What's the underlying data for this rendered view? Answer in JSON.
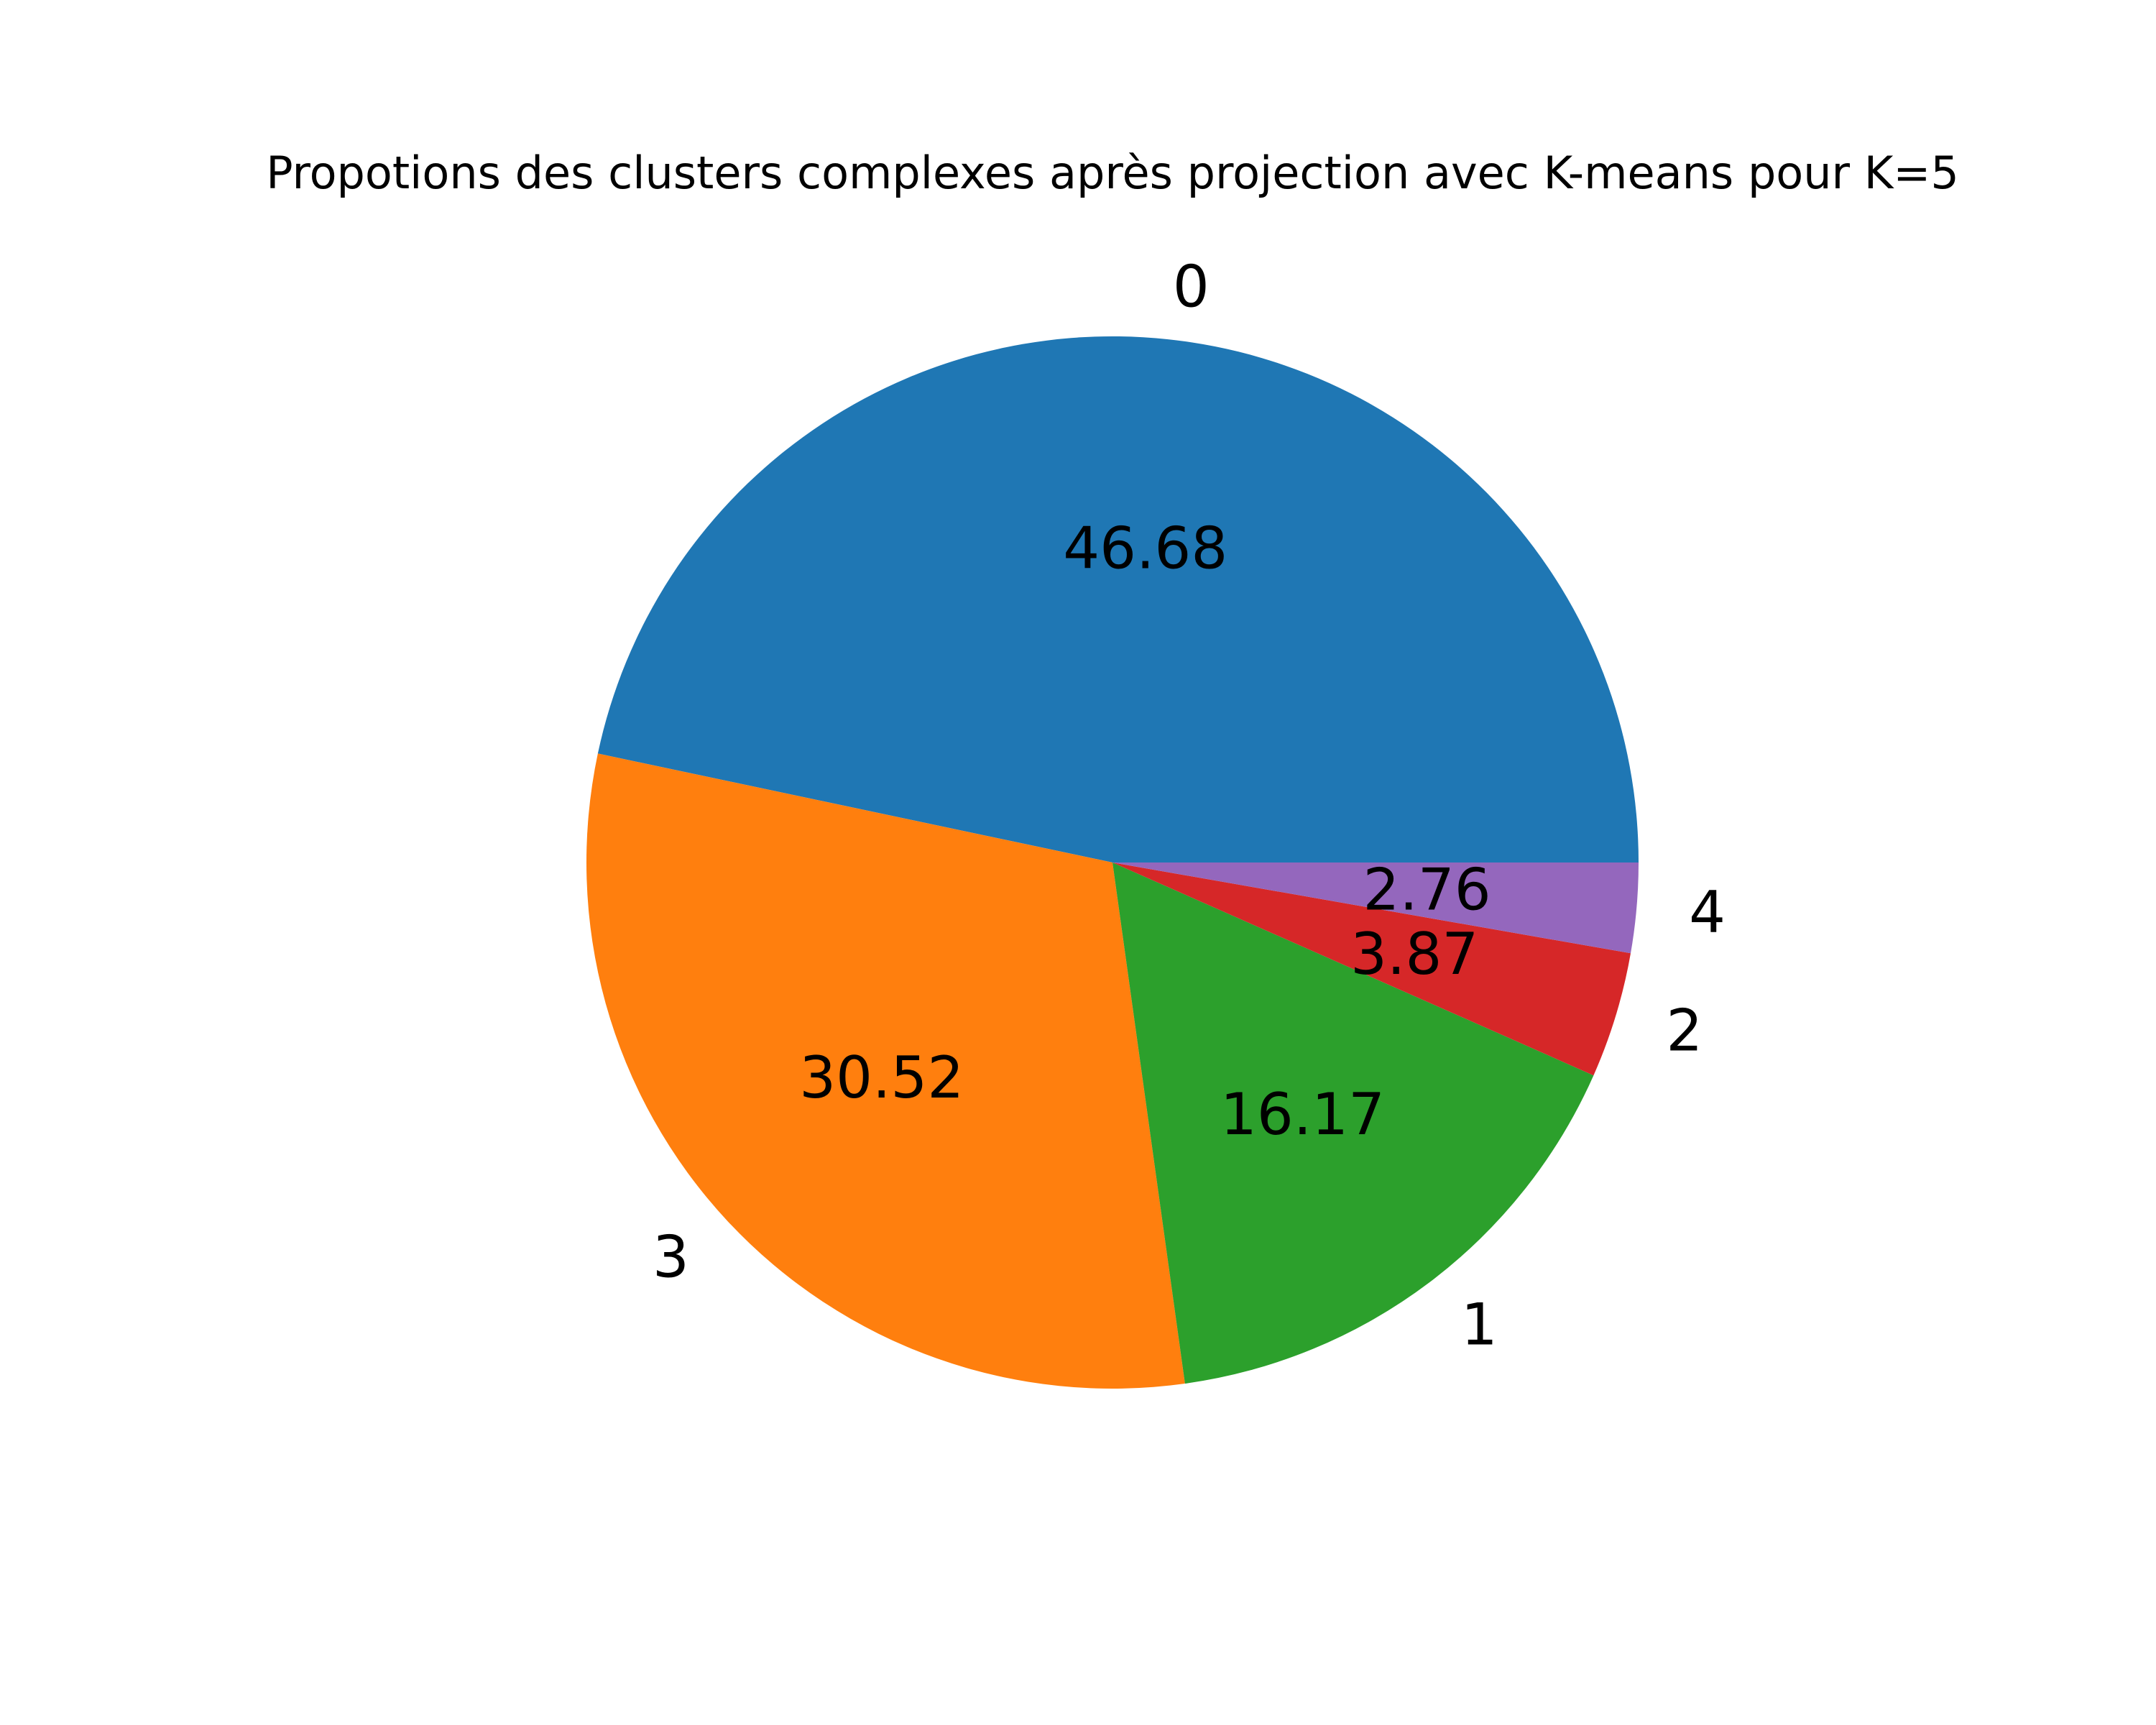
{
  "chart_data": {
    "type": "pie",
    "title": "Propotions des clusters complexes après projection avec K-means pour K=5",
    "start_angle_deg": 0,
    "direction": "counterclockwise",
    "slices": [
      {
        "label": "0",
        "value": 46.68,
        "value_label": "46.68",
        "color": "#1f77b4"
      },
      {
        "label": "3",
        "value": 30.52,
        "value_label": "30.52",
        "color": "#ff7f0e"
      },
      {
        "label": "1",
        "value": 16.17,
        "value_label": "16.17",
        "color": "#2ca02c"
      },
      {
        "label": "2",
        "value": 3.87,
        "value_label": "3.87",
        "color": "#d62728"
      },
      {
        "label": "4",
        "value": 2.76,
        "value_label": "2.76",
        "color": "#9467bd"
      }
    ]
  }
}
